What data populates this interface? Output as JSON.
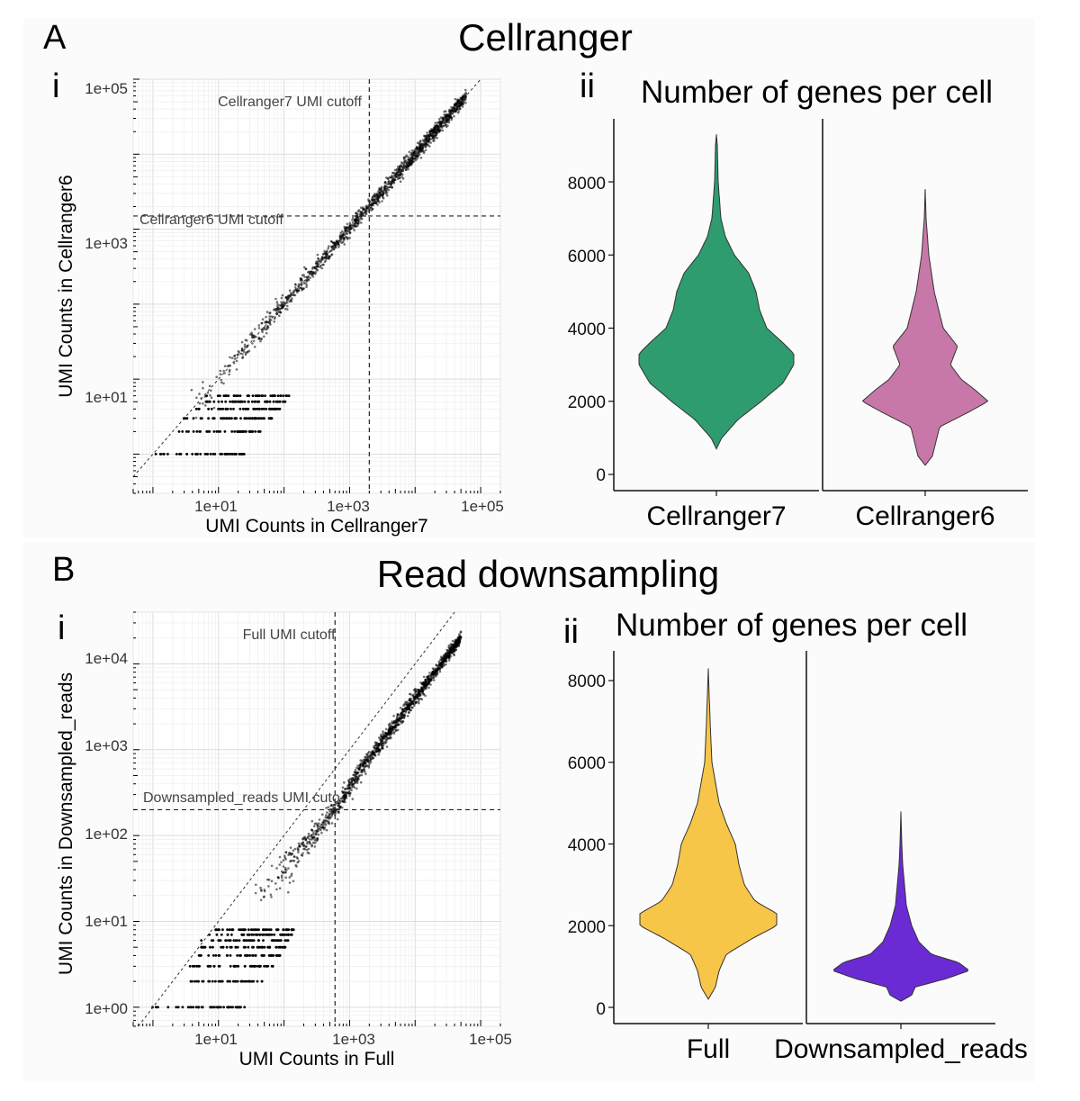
{
  "figure": {
    "sections": [
      {
        "letter": "A",
        "title": "Cellranger",
        "scatter": {
          "panel": "i",
          "xlabel": "UMI Counts in Cellranger7",
          "ylabel": "UMI Counts in Cellranger6",
          "x_ticks": [
            "1e+01",
            "1e+03",
            "1e+05"
          ],
          "y_ticks": [
            "1e+01",
            "1e+03",
            "1e+05"
          ],
          "vline_label": "Cellranger7 UMI cutoff",
          "hline_label": "Cellranger6 UMI cutoff"
        },
        "violin": {
          "panel": "ii",
          "title": "Number of genes per cell",
          "y_ticks": [
            "0",
            "2000",
            "4000",
            "6000",
            "8000"
          ],
          "categories": [
            "Cellranger7",
            "Cellranger6"
          ]
        }
      },
      {
        "letter": "B",
        "title": "Read downsampling",
        "scatter": {
          "panel": "i",
          "xlabel": "UMI Counts in Full",
          "ylabel": "UMI Counts in Downsampled_reads",
          "x_ticks": [
            "1e+01",
            "1e+03",
            "1e+05"
          ],
          "y_ticks": [
            "1e+00",
            "1e+01",
            "1e+02",
            "1e+03",
            "1e+04"
          ],
          "vline_label": "Full UMI cutoff",
          "hline_label": "Downsampled_reads UMI cuto"
        },
        "violin": {
          "panel": "ii",
          "title": "Number of genes per cell",
          "y_ticks": [
            "0",
            "2000",
            "4000",
            "6000",
            "8000"
          ],
          "categories": [
            "Full",
            "Downsampled_reads"
          ]
        }
      }
    ]
  },
  "colors": {
    "cellranger7": "#2e9c6f",
    "cellranger6": "#c878a8",
    "full": "#f7c648",
    "downsampled_reads": "#6a2bd4"
  },
  "chart_data": [
    {
      "type": "scatter",
      "title": "Cellranger (A.i)",
      "xlabel": "UMI Counts in Cellranger7",
      "ylabel": "UMI Counts in Cellranger6",
      "x_scale": "log10",
      "y_scale": "log10",
      "xlim": [
        0.5,
        200000
      ],
      "ylim": [
        0.3,
        100000
      ],
      "x_cutoff": 2000,
      "y_cutoff": 1500,
      "identity_line": true,
      "trend": {
        "x": [
          3,
          10,
          100,
          1000,
          10000,
          60000
        ],
        "y": [
          3,
          10,
          100,
          1000,
          10000,
          60000
        ],
        "spread_log10": [
          0.2,
          0.18,
          0.12,
          0.1,
          0.1,
          0.08
        ]
      },
      "discrete_rows_y": [
        1,
        2,
        3,
        4,
        5,
        6
      ]
    },
    {
      "type": "violin",
      "title": "Number of genes per cell",
      "categories": [
        "Cellranger7",
        "Cellranger6"
      ],
      "ylim": [
        0,
        9500
      ],
      "profiles": [
        {
          "name": "Cellranger7",
          "y": [
            700,
            1000,
            1500,
            2000,
            2500,
            3000,
            3300,
            3600,
            4000,
            4500,
            5000,
            5500,
            6000,
            6500,
            7000,
            8000,
            9000,
            9300
          ],
          "half_width": [
            0,
            6,
            24,
            50,
            74,
            86,
            86,
            74,
            56,
            48,
            44,
            36,
            20,
            10,
            5,
            2,
            1,
            0
          ]
        },
        {
          "name": "Cellranger6",
          "y": [
            250,
            500,
            900,
            1300,
            1700,
            2000,
            2300,
            2600,
            3000,
            3500,
            4000,
            5000,
            6000,
            7000,
            7800
          ],
          "half_width": [
            0,
            8,
            12,
            16,
            48,
            70,
            56,
            40,
            28,
            36,
            20,
            10,
            4,
            1,
            0
          ]
        }
      ]
    },
    {
      "type": "scatter",
      "title": "Read downsampling (B.i)",
      "xlabel": "UMI Counts in Full",
      "ylabel": "UMI Counts in Downsampled_reads",
      "x_scale": "log10",
      "y_scale": "log10",
      "xlim": [
        0.5,
        200000
      ],
      "ylim": [
        0.6,
        40000
      ],
      "x_cutoff": 600,
      "y_cutoff": 200,
      "identity_line": true,
      "trend": {
        "x": [
          30,
          100,
          600,
          2000,
          10000,
          50000
        ],
        "y": [
          20,
          40,
          200,
          800,
          4000,
          20000
        ],
        "spread_log10": [
          0.25,
          0.2,
          0.12,
          0.1,
          0.08,
          0.07
        ]
      },
      "discrete_rows_y": [
        1,
        2,
        3,
        4,
        5,
        6,
        7,
        8
      ]
    },
    {
      "type": "violin",
      "title": "Number of genes per cell",
      "categories": [
        "Full",
        "Downsampled_reads"
      ],
      "ylim": [
        0,
        8600
      ],
      "profiles": [
        {
          "name": "Full",
          "y": [
            200,
            500,
            900,
            1300,
            1700,
            2000,
            2300,
            2600,
            3000,
            3500,
            4000,
            4500,
            5000,
            6000,
            7000,
            8300
          ],
          "half_width": [
            0,
            8,
            12,
            20,
            50,
            76,
            76,
            52,
            40,
            34,
            30,
            20,
            12,
            4,
            2,
            0
          ]
        },
        {
          "name": "Downsampled_reads",
          "y": [
            150,
            300,
            500,
            700,
            900,
            1100,
            1300,
            1600,
            2000,
            2500,
            3000,
            3500,
            4000,
            4800
          ],
          "half_width": [
            0,
            12,
            16,
            50,
            76,
            64,
            34,
            20,
            12,
            6,
            4,
            2,
            1,
            0
          ]
        }
      ]
    }
  ]
}
